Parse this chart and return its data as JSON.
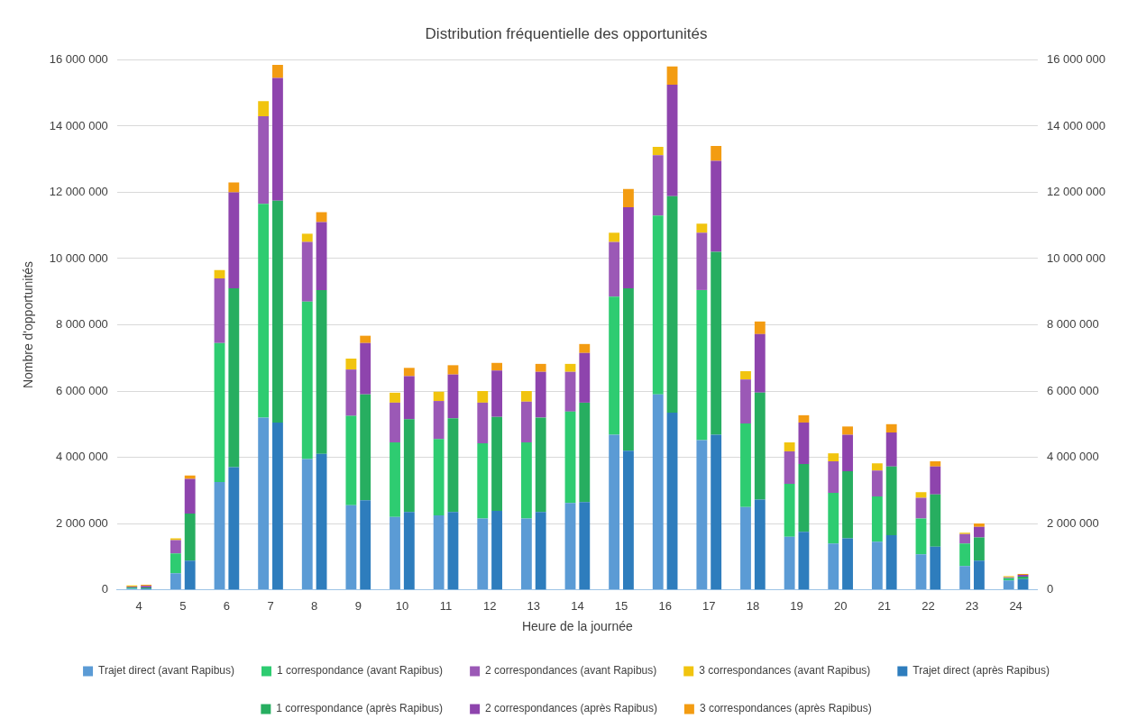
{
  "chart_data": {
    "type": "bar",
    "stacked": true,
    "title": "Distribution fréquentielle des opportunités",
    "xlabel": "Heure de la journée",
    "ylabel": "Nombre d'opportunités",
    "categories": [
      "4",
      "5",
      "6",
      "7",
      "8",
      "9",
      "10",
      "11",
      "12",
      "13",
      "14",
      "15",
      "16",
      "17",
      "18",
      "19",
      "20",
      "21",
      "22",
      "23",
      "24"
    ],
    "series": [
      {
        "name": "Trajet direct (avant Rapibus)",
        "color": "#5b9bd5",
        "values": [
          40000,
          500000,
          3250000,
          5200000,
          3950000,
          2550000,
          2200000,
          2250000,
          2150000,
          2150000,
          2620000,
          4680000,
          5900000,
          4520000,
          2500000,
          1600000,
          1400000,
          1450000,
          1070000,
          720000,
          280000
        ]
      },
      {
        "name": "1 correspondance (avant Rapibus)",
        "color": "#2ecc71",
        "values": [
          30000,
          600000,
          4200000,
          6450000,
          4750000,
          2700000,
          2250000,
          2300000,
          2270000,
          2300000,
          2760000,
          4170000,
          5400000,
          4530000,
          2520000,
          1600000,
          1530000,
          1370000,
          1080000,
          680000,
          70000
        ]
      },
      {
        "name": "2 correspondances (avant Rapibus)",
        "color": "#9b59b6",
        "values": [
          30000,
          400000,
          1950000,
          2650000,
          1800000,
          1400000,
          1200000,
          1150000,
          1230000,
          1230000,
          1200000,
          1650000,
          1820000,
          1730000,
          1330000,
          980000,
          950000,
          780000,
          630000,
          280000,
          30000
        ]
      },
      {
        "name": "3 correspondances (avant Rapibus)",
        "color": "#f1c40f",
        "values": [
          30000,
          50000,
          250000,
          450000,
          250000,
          330000,
          300000,
          280000,
          350000,
          320000,
          240000,
          280000,
          250000,
          270000,
          250000,
          270000,
          240000,
          220000,
          170000,
          40000,
          30000
        ]
      },
      {
        "name": "Trajet direct (après Rapibus)",
        "color": "#2e7dbd",
        "axis": "y2",
        "values": [
          40000,
          880000,
          3700000,
          5050000,
          4100000,
          2700000,
          2350000,
          2350000,
          2380000,
          2350000,
          2650000,
          4200000,
          5350000,
          4680000,
          2720000,
          1750000,
          1550000,
          1650000,
          1300000,
          880000,
          320000
        ]
      },
      {
        "name": "1 correspondance (après Rapibus)",
        "color": "#27ae60",
        "axis": "y2",
        "values": [
          30000,
          1420000,
          5400000,
          6700000,
          4950000,
          3200000,
          2800000,
          2830000,
          2840000,
          2850000,
          3000000,
          4900000,
          6530000,
          5520000,
          3230000,
          2050000,
          2030000,
          2070000,
          1580000,
          700000,
          80000
        ]
      },
      {
        "name": "2 correspondances (après Rapibus)",
        "color": "#8e44ad",
        "axis": "y2",
        "values": [
          50000,
          1050000,
          2900000,
          3700000,
          2050000,
          1550000,
          1300000,
          1320000,
          1400000,
          1380000,
          1500000,
          2450000,
          3370000,
          2750000,
          1770000,
          1250000,
          1100000,
          1030000,
          840000,
          320000,
          50000
        ]
      },
      {
        "name": "3 correspondances (après Rapibus)",
        "color": "#f39c12",
        "axis": "y2",
        "values": [
          30000,
          100000,
          300000,
          400000,
          300000,
          220000,
          250000,
          280000,
          230000,
          240000,
          270000,
          550000,
          550000,
          450000,
          380000,
          220000,
          250000,
          250000,
          160000,
          100000,
          30000
        ]
      }
    ],
    "ylim": [
      0,
      16000000
    ],
    "y2lim": [
      0,
      16000000
    ],
    "y2ticks": [
      {
        "value": 0,
        "label": "0"
      },
      {
        "value": 2000000,
        "label": "2 000 000"
      },
      {
        "value": 4000000,
        "label": "4 000 000"
      },
      {
        "value": 6000000,
        "label": "6 000 000"
      },
      {
        "value": 8000000,
        "label": "8 000 000"
      },
      {
        "value": 10000000,
        "label": "10 000 000"
      },
      {
        "value": 12000000,
        "label": "12 000 000"
      },
      {
        "value": 14000000,
        "label": "14 000 000"
      },
      {
        "value": 16000000,
        "label": "16 000 000"
      }
    ],
    "yticks": [
      {
        "value": 0,
        "label": "0"
      },
      {
        "value": 2000000,
        "label": "2 000 000"
      },
      {
        "value": 4000000,
        "label": "4 000 000"
      },
      {
        "value": 6000000,
        "label": "6 000 000"
      },
      {
        "value": 8000000,
        "label": "8 000 000"
      },
      {
        "value": 10000000,
        "label": "10 000 000"
      },
      {
        "value": 12000000,
        "label": "12 000 000"
      },
      {
        "value": 14000000,
        "label": "14 000 000"
      },
      {
        "value": 16000000,
        "label": "16 000 000"
      }
    ],
    "grid": "y",
    "legend": "bottom"
  }
}
